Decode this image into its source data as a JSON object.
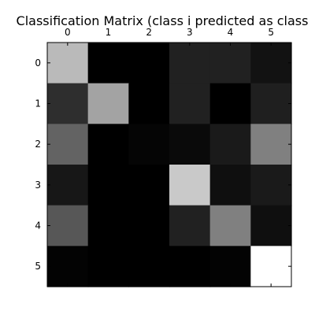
{
  "chart_data": {
    "type": "heatmap",
    "title": "Classification Matrix (class i predicted as class",
    "x_tick_labels": [
      "0",
      "1",
      "2",
      "3",
      "4",
      "5"
    ],
    "y_tick_labels": [
      "0",
      "1",
      "2",
      "3",
      "4",
      "5"
    ],
    "xlabel": "",
    "ylabel": "",
    "colormap": "gray",
    "xaxis_position": "top",
    "grid": false,
    "value_range": [
      0,
      1
    ],
    "values": [
      [
        0.73,
        0.0,
        0.0,
        0.13,
        0.13,
        0.07
      ],
      [
        0.18,
        0.64,
        0.0,
        0.13,
        0.0,
        0.12
      ],
      [
        0.39,
        0.0,
        0.02,
        0.04,
        0.1,
        0.5
      ],
      [
        0.09,
        0.0,
        0.0,
        0.79,
        0.06,
        0.1
      ],
      [
        0.34,
        0.0,
        0.0,
        0.13,
        0.5,
        0.06
      ],
      [
        0.01,
        0.0,
        0.0,
        0.0,
        0.01,
        1.0
      ]
    ]
  }
}
